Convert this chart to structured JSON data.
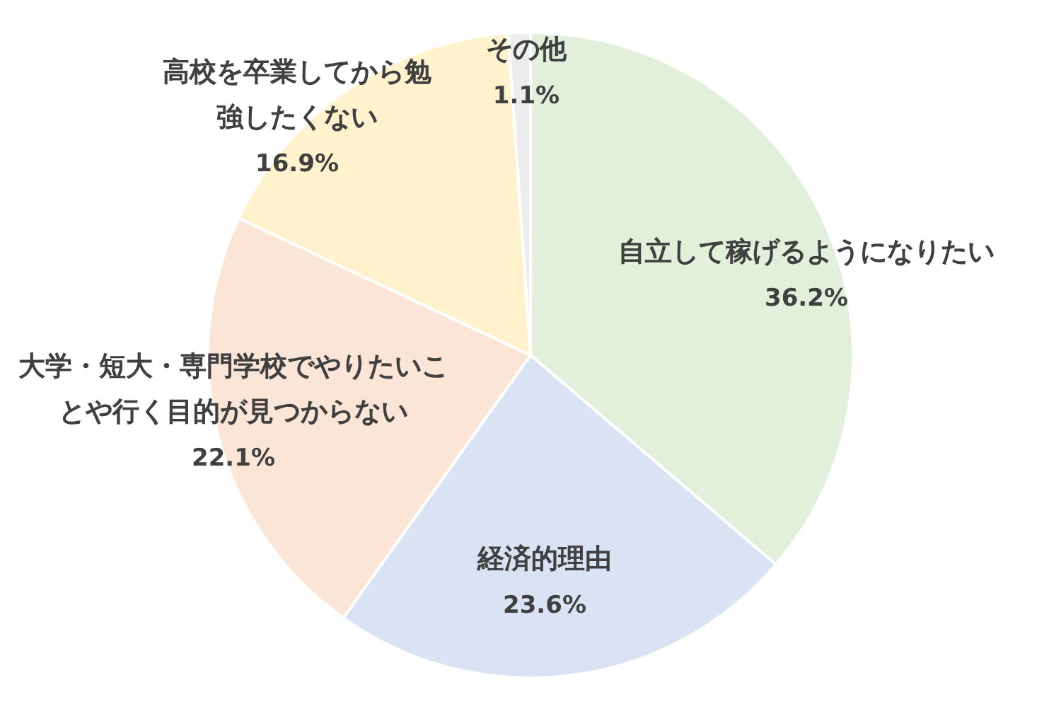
{
  "chart_data": {
    "type": "pie",
    "categories": [
      "自立して稼げるようになりたい",
      "経済的理由",
      "大学・短大・専門学校でやりたいことや行く目的が見つからない",
      "高校を卒業してから勉強したくない",
      "その他"
    ],
    "values": [
      36.2,
      23.6,
      22.1,
      16.9,
      1.1
    ],
    "value_labels": [
      "36.2%",
      "23.6%",
      "22.1%",
      "16.9%",
      "1.1%"
    ],
    "colors": [
      "#e2efda",
      "#dae3f3",
      "#fbe5d6",
      "#fff2cc",
      "#ededed"
    ]
  }
}
